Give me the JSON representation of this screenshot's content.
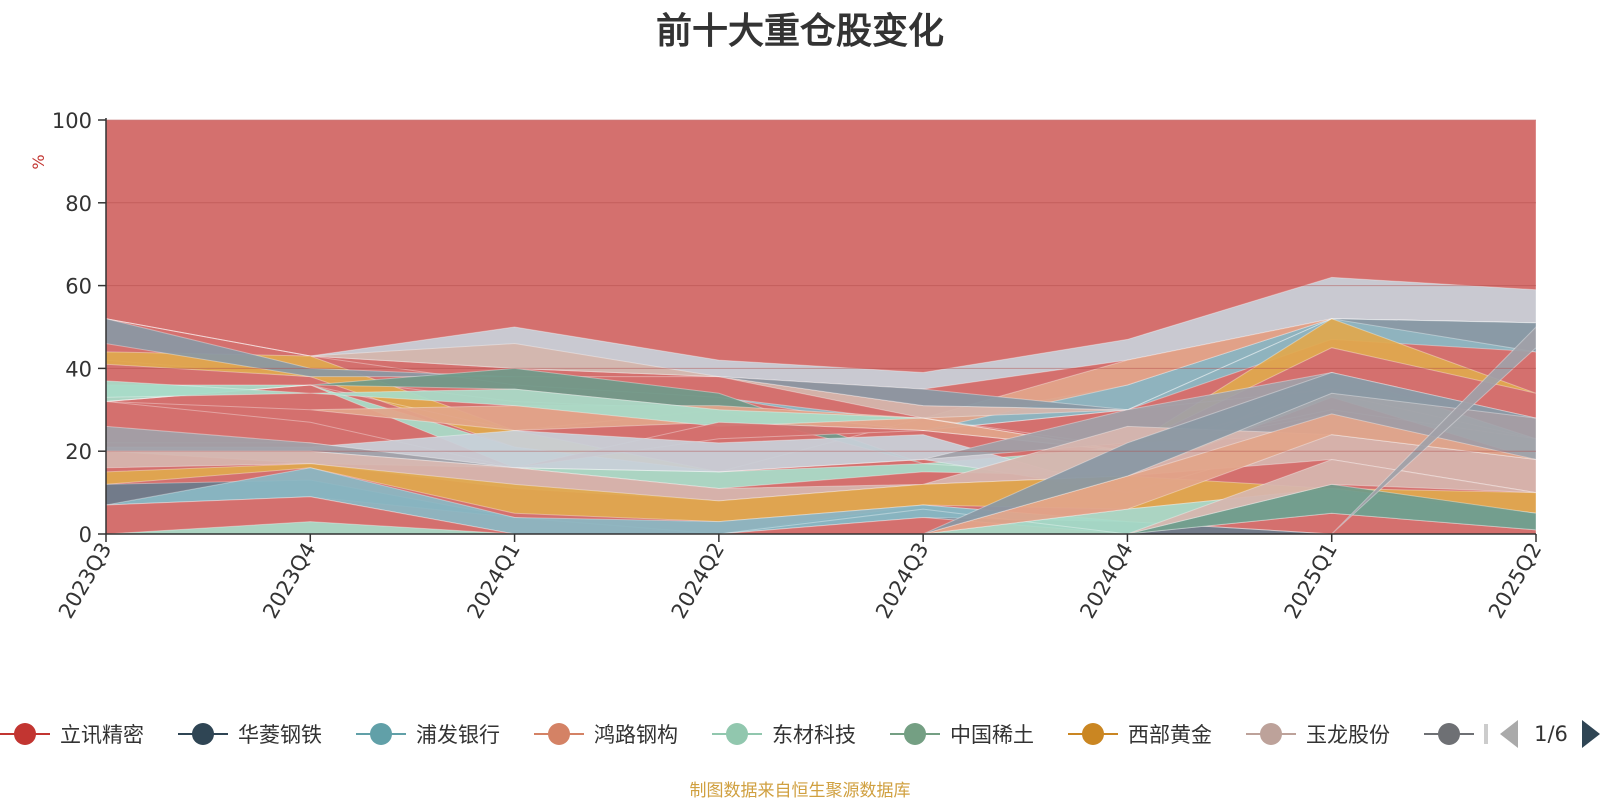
{
  "chart_data": {
    "type": "area",
    "stacked": true,
    "title": "前十大重仓股变化",
    "ylabel": "%",
    "ylim": [
      0,
      100
    ],
    "yticks": [
      0,
      20,
      40,
      60,
      80,
      100
    ],
    "grid": true,
    "categories": [
      "2023Q3",
      "2023Q4",
      "2024Q1",
      "2024Q2",
      "2024Q3",
      "2024Q4",
      "2025Q1",
      "2025Q2"
    ],
    "bands": [
      {
        "color": "#d4706e",
        "bottom": [
          0,
          0,
          0,
          0,
          0,
          0,
          0,
          0
        ],
        "top": [
          100,
          100,
          100,
          100,
          100,
          100,
          100,
          100
        ]
      },
      {
        "color": "#c8d0d8",
        "bottom": [
          52,
          43,
          40,
          38,
          35,
          42,
          52,
          51
        ],
        "top": [
          52,
          43,
          50,
          42,
          39,
          47,
          62,
          59
        ]
      },
      {
        "color": "#8ab8c4",
        "bottom": [
          52,
          43,
          36,
          33,
          25,
          30,
          47,
          44
        ],
        "top": [
          52,
          43,
          36,
          33,
          27,
          36,
          52,
          51
        ]
      },
      {
        "color": "#e2a58a",
        "bottom": [
          42,
          38,
          32,
          30,
          25,
          36,
          52,
          51
        ],
        "top": [
          42,
          38,
          32,
          30,
          28,
          42,
          52,
          51
        ]
      },
      {
        "color": "#d4b6ac",
        "bottom": [
          52,
          43,
          40,
          38,
          28,
          30,
          52,
          51
        ],
        "top": [
          52,
          43,
          46,
          38,
          31,
          30,
          52,
          51
        ]
      },
      {
        "color": "#e0a84e",
        "bottom": [
          41,
          38,
          21,
          15,
          28,
          21,
          45,
          34
        ],
        "top": [
          44,
          43,
          25,
          15,
          28,
          21,
          52,
          34
        ]
      },
      {
        "color": "#8a98a4",
        "bottom": [
          46,
          38,
          38,
          38,
          31,
          30,
          52,
          44
        ],
        "top": [
          52,
          40,
          38,
          38,
          35,
          30,
          52,
          51
        ]
      },
      {
        "color": "#a8dcc8",
        "bottom": [
          32,
          36,
          16,
          11,
          15,
          14,
          33,
          18
        ],
        "top": [
          36,
          36,
          21,
          15,
          17,
          21,
          39,
          23
        ]
      },
      {
        "color": "#6f9a8a",
        "bottom": [
          32,
          36,
          35,
          30,
          17,
          14,
          39,
          23
        ],
        "top": [
          32,
          36,
          40,
          34,
          17,
          14,
          39,
          23
        ]
      },
      {
        "color": "#d8b0a8",
        "bottom": [
          32,
          36,
          25,
          30,
          25,
          30,
          35,
          28
        ],
        "top": [
          32,
          36,
          25,
          30,
          25,
          30,
          35,
          28
        ]
      },
      {
        "color": "#e2a58a",
        "bottom": [
          32,
          30,
          25,
          27,
          25,
          20,
          29,
          18
        ],
        "top": [
          32,
          30,
          31,
          31,
          28,
          20,
          29,
          18
        ]
      },
      {
        "color": "#a8dcc8",
        "bottom": [
          33,
          34,
          31,
          26,
          28,
          20,
          34,
          23
        ],
        "top": [
          37,
          34,
          35,
          30,
          28,
          20,
          34,
          23
        ]
      },
      {
        "color": "#d4706e",
        "bottom": [
          22,
          22,
          16,
          23,
          25,
          20,
          30,
          23
        ],
        "top": [
          32,
          27,
          16,
          27,
          25,
          20,
          30,
          23
        ]
      },
      {
        "color": "#c8d0d8",
        "bottom": [
          20,
          17,
          16,
          15,
          18,
          10,
          24,
          18
        ],
        "top": [
          21,
          21,
          25,
          22,
          24,
          10,
          24,
          18
        ]
      },
      {
        "color": "#a0a0a8",
        "bottom": [
          20,
          20,
          16,
          15,
          18,
          22,
          24,
          18
        ],
        "top": [
          26,
          22,
          16,
          15,
          18,
          30,
          39,
          28
        ]
      },
      {
        "color": "#d6b6ae",
        "bottom": [
          16,
          17,
          11,
          8,
          12,
          14,
          18,
          10
        ],
        "top": [
          20,
          20,
          16,
          11,
          12,
          26,
          24,
          18
        ]
      },
      {
        "color": "#e0a84e",
        "bottom": [
          12,
          16,
          5,
          3,
          7,
          6,
          11,
          5
        ],
        "top": [
          15,
          17,
          12,
          8,
          12,
          14,
          11,
          10
        ]
      },
      {
        "color": "#6a7c8c",
        "bottom": [
          7,
          9,
          4,
          0,
          4,
          0,
          0,
          0
        ],
        "top": [
          12,
          13,
          4,
          0,
          7,
          3,
          0,
          0
        ]
      },
      {
        "color": "#8ab8c4",
        "bottom": [
          7,
          9,
          0,
          0,
          4,
          3,
          0,
          0
        ],
        "top": [
          7,
          16,
          4,
          3,
          7,
          3,
          0,
          0
        ]
      },
      {
        "color": "#d4706e",
        "bottom": [
          0,
          0,
          0,
          0,
          0,
          0,
          0,
          0
        ],
        "top": [
          7,
          9,
          0,
          0,
          4,
          0,
          0,
          0
        ]
      },
      {
        "color": "#a8dcc8",
        "bottom": [
          0,
          0,
          0,
          0,
          0,
          0,
          5,
          1
        ],
        "top": [
          0,
          3,
          0,
          0,
          0,
          6,
          11,
          5
        ]
      },
      {
        "color": "#8ab8c4",
        "bottom": [
          0,
          0,
          0,
          0,
          6,
          0,
          0,
          0
        ],
        "top": [
          0,
          0,
          0,
          0,
          6,
          0,
          0,
          0
        ]
      },
      {
        "color": "#6f9a8a",
        "bottom": [
          0,
          0,
          0,
          0,
          0,
          0,
          5,
          1
        ],
        "top": [
          0,
          0,
          0,
          0,
          0,
          0,
          12,
          5
        ]
      },
      {
        "color": "#e2a58a",
        "bottom": [
          0,
          0,
          0,
          0,
          0,
          6,
          24,
          18
        ],
        "top": [
          0,
          0,
          0,
          0,
          0,
          14,
          29,
          18
        ]
      },
      {
        "color": "#d6b6ae",
        "bottom": [
          0,
          0,
          0,
          0,
          0,
          0,
          12,
          10
        ],
        "top": [
          0,
          0,
          0,
          0,
          0,
          0,
          18,
          10
        ]
      },
      {
        "color": "#8a98a4",
        "bottom": [
          0,
          0,
          0,
          0,
          0,
          14,
          34,
          28
        ],
        "top": [
          0,
          0,
          0,
          0,
          0,
          22,
          39,
          28
        ]
      },
      {
        "color": "#a0a0a8",
        "bottom": [
          0,
          0,
          0,
          0,
          0,
          0,
          0,
          45
        ],
        "top": [
          0,
          0,
          0,
          0,
          0,
          0,
          0,
          50
        ]
      }
    ],
    "legend": {
      "position": "bottom",
      "page": "1/6",
      "items": [
        {
          "name": "立讯精密",
          "color": "#c23531"
        },
        {
          "name": "华菱钢铁",
          "color": "#2f4554"
        },
        {
          "name": "浦发银行",
          "color": "#61a0a8"
        },
        {
          "name": "鸿路钢构",
          "color": "#d48265"
        },
        {
          "name": "东材科技",
          "color": "#91c7ae"
        },
        {
          "name": "中国稀土",
          "color": "#749f83"
        },
        {
          "name": "西部黄金",
          "color": "#ca8622"
        },
        {
          "name": "玉龙股份",
          "color": "#bda29a"
        },
        {
          "name": "",
          "color": "#6e7074"
        }
      ]
    }
  },
  "source_note": "制图数据来自恒生聚源数据库"
}
